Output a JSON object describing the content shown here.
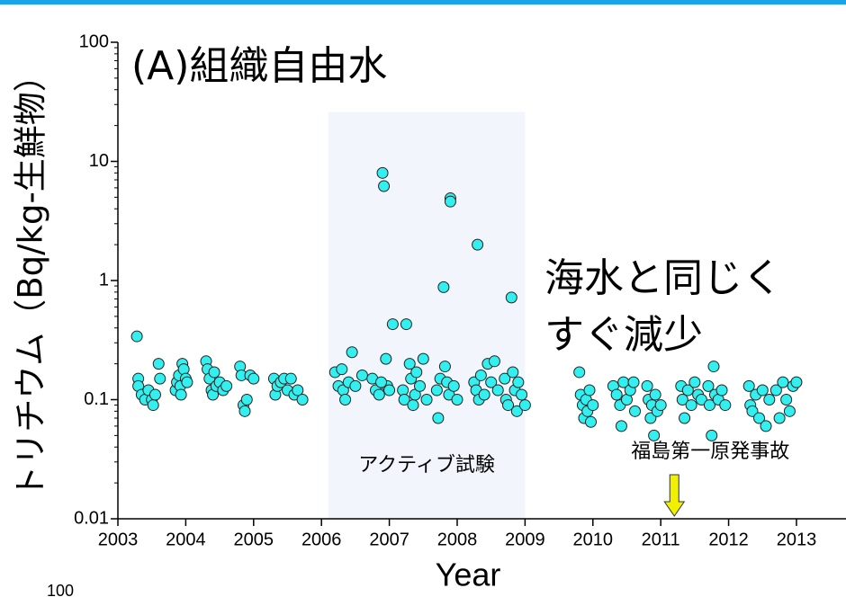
{
  "chart_data": {
    "type": "scatter",
    "title": "(A)組織自由水",
    "x_label": "Year",
    "y_label": "トリチウム（Bq/kg-生鮮物）",
    "log_y": true,
    "color": "#33f0f0",
    "xlim": [
      2003,
      2013.73
    ],
    "xticks": [
      2003,
      2004,
      2005,
      2006,
      2007,
      2008,
      2009,
      2010,
      2011,
      2012,
      2013
    ],
    "ylim": [
      0.01,
      100
    ],
    "yticks": [
      0.01,
      0.1,
      1,
      10,
      100
    ],
    "annotations": [
      {
        "text": "海水と同じく"
      },
      {
        "text": "すぐ減少"
      },
      {
        "text": "アクティブ試験",
        "x": [
          2006.1,
          2009.0
        ],
        "top": 26
      },
      {
        "text": "福島第一原発事故",
        "x": 2011.2
      }
    ],
    "next_panel_tick": "100",
    "x": [
      2003.28,
      2003.3,
      2003.3,
      2003.35,
      2003.4,
      2003.45,
      2003.5,
      2003.52,
      2003.55,
      2003.6,
      2003.62,
      2003.85,
      2003.87,
      2003.9,
      2003.92,
      2003.95,
      2003.97,
      2004.0,
      2004.02,
      2003.93,
      2004.3,
      2004.32,
      2004.35,
      2004.38,
      2004.4,
      2004.42,
      2004.45,
      2004.5,
      2004.55,
      2004.6,
      2004.8,
      2004.82,
      2004.85,
      2004.87,
      2004.9,
      2004.95,
      2005.0,
      2005.3,
      2005.32,
      2005.35,
      2005.4,
      2005.45,
      2005.5,
      2005.55,
      2005.6,
      2005.65,
      2005.72,
      2006.2,
      2006.25,
      2006.3,
      2006.32,
      2006.35,
      2006.4,
      2006.45,
      2006.5,
      2006.6,
      2006.75,
      2006.8,
      2006.85,
      2006.9,
      2006.92,
      2006.95,
      2006.97,
      2007.0,
      2007.05,
      2006.88,
      2007.25,
      2007.2,
      2007.22,
      2007.3,
      2007.32,
      2007.35,
      2007.38,
      2007.4,
      2007.45,
      2007.5,
      2007.55,
      2007.7,
      2007.72,
      2007.75,
      2007.8,
      2007.82,
      2007.85,
      2007.88,
      2007.9,
      2007.9,
      2007.95,
      2008.0,
      2008.25,
      2008.28,
      2008.3,
      2008.32,
      2008.35,
      2008.4,
      2008.45,
      2008.5,
      2008.55,
      2008.6,
      2008.7,
      2008.72,
      2008.75,
      2008.8,
      2008.82,
      2008.85,
      2008.88,
      2008.9,
      2008.95,
      2009.0,
      2009.8,
      2009.82,
      2009.85,
      2009.87,
      2009.9,
      2009.92,
      2009.95,
      2009.97,
      2010.0,
      2010.3,
      2010.35,
      2010.4,
      2010.42,
      2010.45,
      2010.5,
      2010.55,
      2010.6,
      2010.62,
      2010.8,
      2010.82,
      2010.85,
      2010.87,
      2010.9,
      2010.92,
      2010.95,
      2011.0,
      2011.3,
      2011.32,
      2011.35,
      2011.4,
      2011.45,
      2011.5,
      2011.55,
      2011.6,
      2011.7,
      2011.72,
      2011.75,
      2011.78,
      2011.8,
      2011.85,
      2011.9,
      2011.95,
      2012.3,
      2012.32,
      2012.35,
      2012.4,
      2012.45,
      2012.5,
      2012.55,
      2012.6,
      2012.7,
      2012.75,
      2012.8,
      2012.85,
      2012.9,
      2012.95,
      2013.0
    ],
    "values": [
      0.34,
      0.15,
      0.13,
      0.11,
      0.1,
      0.12,
      0.1,
      0.09,
      0.11,
      0.2,
      0.15,
      0.12,
      0.14,
      0.16,
      0.13,
      0.2,
      0.18,
      0.15,
      0.14,
      0.11,
      0.21,
      0.18,
      0.15,
      0.12,
      0.11,
      0.17,
      0.13,
      0.14,
      0.12,
      0.13,
      0.19,
      0.16,
      0.09,
      0.08,
      0.1,
      0.16,
      0.15,
      0.15,
      0.11,
      0.13,
      0.14,
      0.15,
      0.12,
      0.15,
      0.11,
      0.12,
      0.1,
      0.17,
      0.13,
      0.18,
      0.12,
      0.1,
      0.14,
      0.25,
      0.13,
      0.16,
      0.15,
      0.12,
      0.11,
      8.0,
      6.2,
      0.22,
      0.13,
      0.12,
      0.43,
      0.14,
      0.43,
      0.12,
      0.1,
      0.2,
      0.15,
      0.09,
      0.11,
      0.17,
      0.13,
      0.22,
      0.1,
      0.12,
      0.07,
      0.15,
      0.88,
      0.19,
      0.14,
      0.11,
      4.9,
      4.6,
      0.13,
      0.1,
      0.14,
      0.12,
      2.0,
      0.1,
      0.16,
      0.11,
      0.2,
      0.14,
      0.21,
      0.12,
      0.15,
      0.1,
      0.09,
      0.72,
      0.17,
      0.12,
      0.08,
      0.14,
      0.11,
      0.09,
      0.17,
      0.11,
      0.09,
      0.07,
      0.1,
      0.08,
      0.12,
      0.065,
      0.09,
      0.13,
      0.11,
      0.09,
      0.06,
      0.14,
      0.1,
      0.12,
      0.14,
      0.08,
      0.13,
      0.1,
      0.07,
      0.09,
      0.05,
      0.11,
      0.08,
      0.09,
      0.13,
      0.1,
      0.07,
      0.12,
      0.09,
      0.14,
      0.11,
      0.1,
      0.13,
      0.09,
      0.05,
      0.19,
      0.11,
      0.1,
      0.12,
      0.09,
      0.13,
      0.09,
      0.08,
      0.11,
      0.07,
      0.12,
      0.06,
      0.1,
      0.12,
      0.07,
      0.14,
      0.1,
      0.08,
      0.13,
      0.14
    ]
  }
}
